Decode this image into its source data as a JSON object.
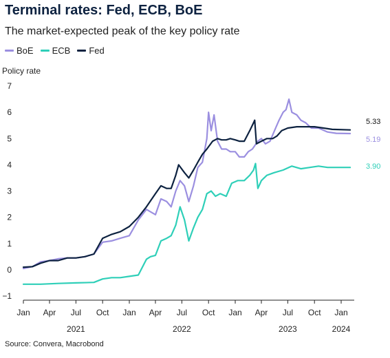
{
  "header": {
    "title": "Terminal rates: Fed, ECB, BoE",
    "subtitle": "The market-expected peak of the key policy rate"
  },
  "source": "Source: Convera, Macrobond",
  "chart_data": {
    "type": "line",
    "title": "Terminal rates: Fed, ECB, BoE",
    "subtitle": "The market-expected peak of the key policy rate",
    "ylabel": "Policy rate",
    "xlabel": "",
    "xlim": [
      "2021-01-01",
      "2024-02-15"
    ],
    "ylim": [
      -1,
      7
    ],
    "yticks": [
      -1,
      0,
      1,
      2,
      3,
      4,
      5,
      6,
      7
    ],
    "xtick_labels": [
      "Jan",
      "Apr",
      "Jul",
      "Oct",
      "Jan",
      "Apr",
      "Jul",
      "Oct",
      "Jan",
      "Apr",
      "Jul",
      "Oct",
      "Jan"
    ],
    "xtick_dates": [
      "2021-01-01",
      "2021-04-01",
      "2021-07-01",
      "2021-10-01",
      "2022-01-01",
      "2022-04-01",
      "2022-07-01",
      "2022-10-01",
      "2023-01-01",
      "2023-04-01",
      "2023-07-01",
      "2023-10-01",
      "2024-01-01"
    ],
    "year_labels": [
      {
        "label": "2021",
        "date": "2021-07-01"
      },
      {
        "label": "2022",
        "date": "2022-07-01"
      },
      {
        "label": "2023",
        "date": "2023-07-01"
      },
      {
        "label": "2024",
        "date": "2024-01-01"
      }
    ],
    "grid": false,
    "legend_position": "top-left",
    "series": [
      {
        "name": "BoE",
        "color": "#9b8fe0",
        "end_label": "5.19",
        "points": [
          [
            "2021-01-01",
            0.05
          ],
          [
            "2021-02-01",
            0.12
          ],
          [
            "2021-03-01",
            0.3
          ],
          [
            "2021-04-01",
            0.35
          ],
          [
            "2021-05-01",
            0.42
          ],
          [
            "2021-06-01",
            0.45
          ],
          [
            "2021-07-01",
            0.45
          ],
          [
            "2021-08-01",
            0.5
          ],
          [
            "2021-09-01",
            0.6
          ],
          [
            "2021-10-01",
            1.05
          ],
          [
            "2021-11-01",
            1.1
          ],
          [
            "2021-12-01",
            1.2
          ],
          [
            "2022-01-01",
            1.3
          ],
          [
            "2022-02-01",
            1.9
          ],
          [
            "2022-03-01",
            2.3
          ],
          [
            "2022-04-01",
            2.1
          ],
          [
            "2022-04-20",
            2.7
          ],
          [
            "2022-05-10",
            2.6
          ],
          [
            "2022-05-25",
            2.4
          ],
          [
            "2022-06-10",
            3.0
          ],
          [
            "2022-06-25",
            3.4
          ],
          [
            "2022-07-10",
            3.2
          ],
          [
            "2022-07-25",
            2.6
          ],
          [
            "2022-08-10",
            3.2
          ],
          [
            "2022-08-25",
            3.9
          ],
          [
            "2022-09-10",
            4.1
          ],
          [
            "2022-09-25",
            5.0
          ],
          [
            "2022-10-01",
            6.0
          ],
          [
            "2022-10-10",
            5.3
          ],
          [
            "2022-10-20",
            5.9
          ],
          [
            "2022-11-01",
            4.9
          ],
          [
            "2022-11-15",
            4.6
          ],
          [
            "2022-12-01",
            4.6
          ],
          [
            "2022-12-15",
            4.5
          ],
          [
            "2023-01-01",
            4.5
          ],
          [
            "2023-01-15",
            4.3
          ],
          [
            "2023-02-01",
            4.3
          ],
          [
            "2023-02-15",
            4.5
          ],
          [
            "2023-03-01",
            4.6
          ],
          [
            "2023-03-20",
            4.9
          ],
          [
            "2023-04-01",
            5.0
          ],
          [
            "2023-04-15",
            4.8
          ],
          [
            "2023-05-01",
            4.9
          ],
          [
            "2023-05-20",
            5.4
          ],
          [
            "2023-06-01",
            5.7
          ],
          [
            "2023-06-15",
            6.0
          ],
          [
            "2023-06-25",
            6.1
          ],
          [
            "2023-07-05",
            6.5
          ],
          [
            "2023-07-15",
            6.0
          ],
          [
            "2023-08-01",
            5.9
          ],
          [
            "2023-08-15",
            5.7
          ],
          [
            "2023-09-01",
            5.6
          ],
          [
            "2023-09-20",
            5.4
          ],
          [
            "2023-10-15",
            5.4
          ],
          [
            "2023-11-15",
            5.25
          ],
          [
            "2023-12-15",
            5.2
          ],
          [
            "2024-02-01",
            5.19
          ]
        ]
      },
      {
        "name": "ECB",
        "color": "#2ecfb8",
        "end_label": "3.90",
        "points": [
          [
            "2021-01-01",
            -0.55
          ],
          [
            "2021-03-01",
            -0.55
          ],
          [
            "2021-05-01",
            -0.52
          ],
          [
            "2021-07-01",
            -0.5
          ],
          [
            "2021-09-01",
            -0.48
          ],
          [
            "2021-10-01",
            -0.35
          ],
          [
            "2021-11-01",
            -0.3
          ],
          [
            "2021-12-01",
            -0.3
          ],
          [
            "2022-01-01",
            -0.25
          ],
          [
            "2022-02-01",
            -0.2
          ],
          [
            "2022-03-01",
            0.4
          ],
          [
            "2022-03-15",
            0.5
          ],
          [
            "2022-04-01",
            0.55
          ],
          [
            "2022-04-20",
            1.1
          ],
          [
            "2022-05-10",
            1.2
          ],
          [
            "2022-05-25",
            1.3
          ],
          [
            "2022-06-10",
            1.7
          ],
          [
            "2022-06-25",
            2.4
          ],
          [
            "2022-07-10",
            1.9
          ],
          [
            "2022-07-25",
            1.1
          ],
          [
            "2022-08-10",
            1.6
          ],
          [
            "2022-08-25",
            2.0
          ],
          [
            "2022-09-10",
            2.3
          ],
          [
            "2022-09-25",
            2.9
          ],
          [
            "2022-10-10",
            3.0
          ],
          [
            "2022-10-25",
            2.8
          ],
          [
            "2022-11-10",
            2.9
          ],
          [
            "2022-12-01",
            2.8
          ],
          [
            "2022-12-20",
            3.3
          ],
          [
            "2023-01-10",
            3.4
          ],
          [
            "2023-02-01",
            3.4
          ],
          [
            "2023-02-20",
            3.6
          ],
          [
            "2023-03-05",
            3.8
          ],
          [
            "2023-03-12",
            4.05
          ],
          [
            "2023-03-20",
            3.1
          ],
          [
            "2023-04-01",
            3.4
          ],
          [
            "2023-04-20",
            3.6
          ],
          [
            "2023-05-15",
            3.7
          ],
          [
            "2023-06-15",
            3.8
          ],
          [
            "2023-07-15",
            3.95
          ],
          [
            "2023-08-15",
            3.85
          ],
          [
            "2023-09-15",
            3.9
          ],
          [
            "2023-10-15",
            3.95
          ],
          [
            "2023-11-15",
            3.9
          ],
          [
            "2023-12-15",
            3.9
          ],
          [
            "2024-02-01",
            3.9
          ]
        ]
      },
      {
        "name": "Fed",
        "color": "#0d2240",
        "end_label": "5.33",
        "points": [
          [
            "2021-01-01",
            0.1
          ],
          [
            "2021-02-01",
            0.12
          ],
          [
            "2021-03-01",
            0.25
          ],
          [
            "2021-04-01",
            0.35
          ],
          [
            "2021-05-01",
            0.35
          ],
          [
            "2021-06-01",
            0.45
          ],
          [
            "2021-07-01",
            0.45
          ],
          [
            "2021-08-01",
            0.5
          ],
          [
            "2021-09-01",
            0.6
          ],
          [
            "2021-10-01",
            1.2
          ],
          [
            "2021-11-01",
            1.35
          ],
          [
            "2021-12-01",
            1.45
          ],
          [
            "2022-01-01",
            1.65
          ],
          [
            "2022-02-01",
            2.0
          ],
          [
            "2022-03-01",
            2.4
          ],
          [
            "2022-04-01",
            2.9
          ],
          [
            "2022-04-20",
            3.2
          ],
          [
            "2022-05-10",
            3.1
          ],
          [
            "2022-05-25",
            3.1
          ],
          [
            "2022-06-10",
            3.6
          ],
          [
            "2022-06-20",
            4.0
          ],
          [
            "2022-07-10",
            3.7
          ],
          [
            "2022-07-25",
            3.5
          ],
          [
            "2022-08-10",
            3.8
          ],
          [
            "2022-08-25",
            4.1
          ],
          [
            "2022-09-10",
            4.4
          ],
          [
            "2022-09-25",
            4.6
          ],
          [
            "2022-10-15",
            4.9
          ],
          [
            "2022-11-01",
            5.0
          ],
          [
            "2022-11-15",
            4.95
          ],
          [
            "2022-12-01",
            4.95
          ],
          [
            "2022-12-15",
            5.0
          ],
          [
            "2023-01-01",
            4.95
          ],
          [
            "2023-01-15",
            4.9
          ],
          [
            "2023-02-01",
            4.9
          ],
          [
            "2023-02-20",
            5.3
          ],
          [
            "2023-03-05",
            5.6
          ],
          [
            "2023-03-09",
            5.7
          ],
          [
            "2023-03-15",
            4.8
          ],
          [
            "2023-04-01",
            4.9
          ],
          [
            "2023-04-20",
            5.0
          ],
          [
            "2023-05-10",
            5.0
          ],
          [
            "2023-05-25",
            5.1
          ],
          [
            "2023-06-10",
            5.3
          ],
          [
            "2023-07-01",
            5.4
          ],
          [
            "2023-08-01",
            5.45
          ],
          [
            "2023-09-01",
            5.45
          ],
          [
            "2023-10-01",
            5.45
          ],
          [
            "2023-11-01",
            5.4
          ],
          [
            "2023-12-01",
            5.35
          ],
          [
            "2024-02-01",
            5.33
          ]
        ]
      }
    ]
  }
}
